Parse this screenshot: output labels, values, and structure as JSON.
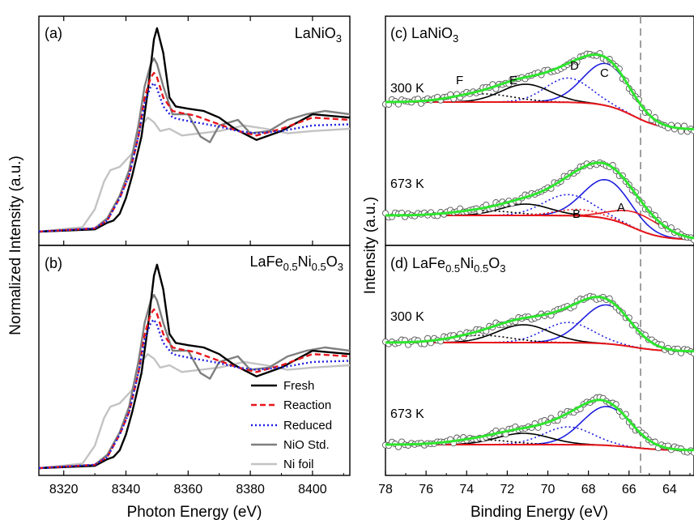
{
  "left": {
    "ylabel": "Normalized Intensity (a.u.)",
    "xlabel": "Photon Energy (eV)",
    "xticks": [
      "8320",
      "8340",
      "8360",
      "8380",
      "8400"
    ],
    "panel_a": {
      "tag": "(a)",
      "sample_base": "LaNiO",
      "sample_sub": "3"
    },
    "panel_b": {
      "tag": "(b)",
      "sample": [
        "La",
        "Fe",
        "0.5",
        "Ni",
        "0.5",
        "O",
        "3"
      ]
    },
    "legend": [
      {
        "label": "Fresh",
        "color": "#000000",
        "dash": "solid"
      },
      {
        "label": "Reaction",
        "color": "#e8151b",
        "dash": "dashed"
      },
      {
        "label": "Reduced",
        "color": "#1f1fe0",
        "dash": "dotted"
      },
      {
        "label": "NiO Std.",
        "color": "#7f7f7f",
        "dash": "solid"
      },
      {
        "label": "Ni foil",
        "color": "#c3c3c3",
        "dash": "solid"
      }
    ]
  },
  "right": {
    "ylabel": "Intensity (a.u.)",
    "xlabel": "Binding Energy (eV)",
    "xticks": [
      "78",
      "76",
      "74",
      "72",
      "70",
      "68",
      "66",
      "64"
    ],
    "panel_c": {
      "tag": "(c)",
      "sample_base": "LaNiO",
      "sample_sub": "3"
    },
    "panel_d": {
      "tag": "(d)",
      "sample": [
        "La",
        "Fe",
        "0.5",
        "Ni",
        "0.5",
        "O",
        "3"
      ]
    },
    "spectra": [
      {
        "temp": "300 K",
        "panel": "c"
      },
      {
        "temp": "673 K",
        "panel": "c"
      },
      {
        "temp": "300 K",
        "panel": "d"
      },
      {
        "temp": "673 K",
        "panel": "d"
      }
    ],
    "peak_labels": [
      "F",
      "E",
      "D",
      "C",
      "B",
      "A"
    ]
  },
  "chart_data": [
    {
      "type": "line",
      "panel": "(a) LaNiO3",
      "xlabel": "Photon Energy (eV)",
      "ylabel": "Normalized Intensity (a.u.)",
      "xlim": [
        8312,
        8412
      ],
      "series": [
        {
          "name": "Fresh",
          "x": [
            8312,
            8330,
            8334,
            8336,
            8338,
            8340,
            8342,
            8345,
            8347,
            8349,
            8350,
            8352,
            8354,
            8356,
            8360,
            8365,
            8370,
            8375,
            8382,
            8390,
            8400,
            8412
          ],
          "y": [
            0.0,
            0.02,
            0.08,
            0.1,
            0.16,
            0.3,
            0.5,
            0.85,
            1.25,
            1.72,
            1.82,
            1.6,
            1.2,
            1.12,
            1.1,
            1.08,
            1.02,
            0.92,
            0.82,
            0.9,
            1.05,
            1.02
          ]
        },
        {
          "name": "Reaction",
          "x": [
            8312,
            8330,
            8334,
            8338,
            8341,
            8344,
            8346,
            8348,
            8349,
            8350,
            8352,
            8355,
            8358,
            8362,
            8366,
            8370,
            8376,
            8382,
            8390,
            8400,
            8412
          ],
          "y": [
            0.0,
            0.03,
            0.1,
            0.3,
            0.5,
            0.85,
            1.2,
            1.38,
            1.42,
            1.38,
            1.2,
            1.08,
            1.06,
            1.04,
            1.0,
            0.96,
            0.9,
            0.86,
            0.92,
            1.02,
            1.0
          ]
        },
        {
          "name": "Reduced",
          "x": [
            8312,
            8330,
            8334,
            8338,
            8341,
            8344,
            8346,
            8348,
            8349,
            8350,
            8352,
            8355,
            8358,
            8362,
            8366,
            8370,
            8376,
            8382,
            8390,
            8400,
            8412
          ],
          "y": [
            0.0,
            0.03,
            0.1,
            0.3,
            0.5,
            0.85,
            1.15,
            1.3,
            1.33,
            1.28,
            1.12,
            1.02,
            1.0,
            0.98,
            0.96,
            0.94,
            0.9,
            0.88,
            0.9,
            0.95,
            0.96
          ]
        },
        {
          "name": "NiO Std.",
          "x": [
            8312,
            8330,
            8334,
            8338,
            8341,
            8344,
            8346,
            8348,
            8349,
            8350,
            8352,
            8355,
            8360,
            8364,
            8367,
            8370,
            8376,
            8380,
            8386,
            8392,
            8398,
            8404,
            8412
          ],
          "y": [
            0.0,
            0.03,
            0.12,
            0.32,
            0.55,
            0.95,
            1.3,
            1.5,
            1.55,
            1.5,
            1.3,
            1.05,
            1.05,
            0.85,
            0.8,
            0.95,
            1.0,
            0.88,
            0.9,
            1.0,
            1.05,
            1.08,
            1.05
          ]
        },
        {
          "name": "Ni foil",
          "x": [
            8312,
            8326,
            8330,
            8333,
            8335,
            8338,
            8342,
            8345,
            8347,
            8349,
            8351,
            8354,
            8358,
            8364,
            8370,
            8378,
            8385,
            8392,
            8400,
            8412
          ],
          "y": [
            0.0,
            0.04,
            0.2,
            0.45,
            0.55,
            0.58,
            0.7,
            0.95,
            1.02,
            0.98,
            0.9,
            0.92,
            0.86,
            0.88,
            0.9,
            0.95,
            0.92,
            0.88,
            0.9,
            0.92
          ]
        }
      ]
    },
    {
      "type": "line",
      "panel": "(b) LaFe0.5Ni0.5O3",
      "xlabel": "Photon Energy (eV)",
      "ylabel": "Normalized Intensity (a.u.)",
      "xlim": [
        8312,
        8412
      ],
      "series": [
        {
          "name": "Fresh",
          "x": [
            8312,
            8330,
            8334,
            8336,
            8338,
            8340,
            8342,
            8345,
            8347,
            8349,
            8350,
            8352,
            8354,
            8356,
            8360,
            8365,
            8370,
            8375,
            8382,
            8390,
            8400,
            8412
          ],
          "y": [
            0.0,
            0.02,
            0.08,
            0.1,
            0.16,
            0.3,
            0.5,
            0.85,
            1.25,
            1.72,
            1.82,
            1.6,
            1.2,
            1.12,
            1.1,
            1.08,
            1.02,
            0.92,
            0.82,
            0.9,
            1.05,
            1.02
          ]
        },
        {
          "name": "Reaction",
          "x": [
            8312,
            8330,
            8334,
            8338,
            8341,
            8344,
            8346,
            8348,
            8349,
            8350,
            8352,
            8355,
            8358,
            8362,
            8366,
            8370,
            8376,
            8382,
            8390,
            8400,
            8412
          ],
          "y": [
            0.0,
            0.03,
            0.1,
            0.3,
            0.5,
            0.85,
            1.2,
            1.38,
            1.42,
            1.38,
            1.2,
            1.08,
            1.06,
            1.04,
            1.0,
            0.96,
            0.9,
            0.86,
            0.92,
            1.02,
            1.0
          ]
        },
        {
          "name": "Reduced",
          "x": [
            8312,
            8330,
            8334,
            8338,
            8341,
            8344,
            8346,
            8348,
            8349,
            8350,
            8352,
            8355,
            8358,
            8362,
            8366,
            8370,
            8376,
            8382,
            8390,
            8400,
            8412
          ],
          "y": [
            0.0,
            0.03,
            0.1,
            0.3,
            0.5,
            0.85,
            1.15,
            1.3,
            1.33,
            1.28,
            1.12,
            1.02,
            1.0,
            0.98,
            0.96,
            0.94,
            0.9,
            0.88,
            0.9,
            0.95,
            0.96
          ]
        },
        {
          "name": "NiO Std.",
          "x": [
            8312,
            8330,
            8334,
            8338,
            8341,
            8344,
            8346,
            8348,
            8349,
            8350,
            8352,
            8355,
            8360,
            8364,
            8367,
            8370,
            8376,
            8380,
            8386,
            8392,
            8398,
            8404,
            8412
          ],
          "y": [
            0.0,
            0.03,
            0.12,
            0.32,
            0.55,
            0.95,
            1.3,
            1.5,
            1.55,
            1.5,
            1.3,
            1.05,
            1.05,
            0.85,
            0.8,
            0.95,
            1.0,
            0.88,
            0.9,
            1.0,
            1.05,
            1.08,
            1.05
          ]
        },
        {
          "name": "Ni foil",
          "x": [
            8312,
            8326,
            8330,
            8333,
            8335,
            8338,
            8342,
            8345,
            8347,
            8349,
            8351,
            8354,
            8358,
            8364,
            8370,
            8378,
            8385,
            8392,
            8400,
            8412
          ],
          "y": [
            0.0,
            0.04,
            0.2,
            0.45,
            0.55,
            0.58,
            0.7,
            0.95,
            1.02,
            0.98,
            0.9,
            0.92,
            0.86,
            0.88,
            0.9,
            0.95,
            0.92,
            0.88,
            0.9,
            0.92
          ]
        }
      ]
    },
    {
      "type": "line",
      "panel": "(c) LaNiO3 / (d) LaFe0.5Ni0.5O3",
      "xlabel": "Binding Energy (eV)",
      "ylabel": "Intensity (a.u.)",
      "xlim": [
        78,
        62.8
      ],
      "reference_line_x": 65.4,
      "components_eV": {
        "A": 65.5,
        "B": 68.5,
        "C": 67.1,
        "D": 69.0,
        "E": 71.1,
        "F": 73.2
      },
      "spectra": [
        "300 K (c)",
        "673 K (c)",
        "300 K (d)",
        "673 K (d)"
      ]
    }
  ]
}
